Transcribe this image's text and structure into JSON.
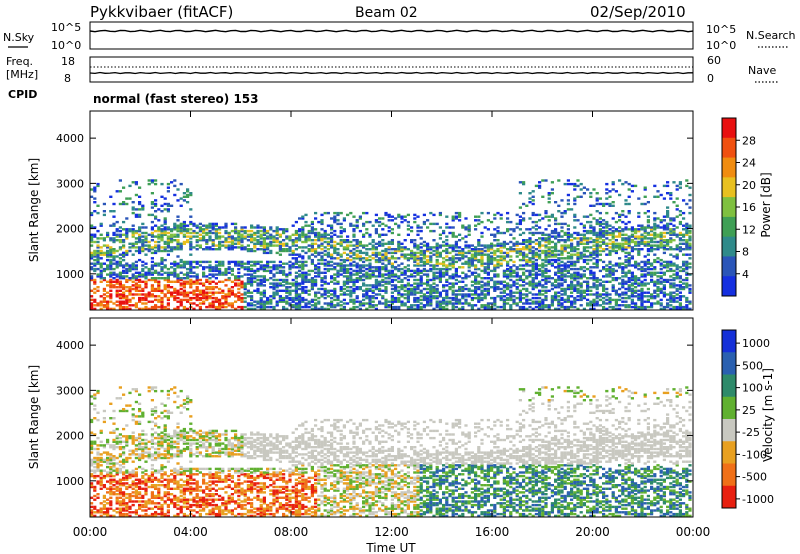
{
  "header": {
    "title": "Pykkvibaer (fitACF)",
    "beam": "Beam 02",
    "date": "02/Sep/2010"
  },
  "sky_panel": {
    "left_label": "N.Sky",
    "right_label": "N.Search",
    "left_ticks": [
      "10^5",
      "10^0"
    ],
    "right_ticks": [
      "10^5",
      "10^0"
    ]
  },
  "freq_panel": {
    "left_label_1": "Freq.",
    "left_label_2": "[MHz]",
    "right_label": "Nave",
    "left_ticks": [
      "18",
      "8"
    ],
    "right_ticks": [
      "60",
      "0"
    ]
  },
  "cpid": {
    "label": "CPID",
    "mode": "normal (fast stereo) 153"
  },
  "x_axis": {
    "label": "Time UT",
    "ticks": [
      "00:00",
      "04:00",
      "08:00",
      "12:00",
      "16:00",
      "20:00",
      "00:00"
    ]
  },
  "colors": {
    "power": [
      "#1530e0",
      "#2a55b8",
      "#2f8a8a",
      "#3f9f55",
      "#7fc040",
      "#e8c020",
      "#f08c10",
      "#f05010",
      "#e81010"
    ],
    "velocity": [
      "#1530d8",
      "#2a60b0",
      "#2e8a6a",
      "#60b030",
      "#c8c8c0",
      "#e8a020",
      "#f07018",
      "#e82010"
    ]
  },
  "chart_data": [
    {
      "type": "heatmap",
      "name": "Power",
      "ylabel": "Slant Range [km]",
      "xlabel": "",
      "yticks": [
        1000,
        2000,
        3000,
        4000
      ],
      "ylim": [
        200,
        4600
      ],
      "xlim_hours": [
        0,
        24
      ],
      "colorbar": {
        "label": "Power [dB]",
        "ticks": [
          "4",
          "8",
          "12",
          "16",
          "20",
          "24",
          "28"
        ],
        "range": [
          0,
          30
        ]
      }
    },
    {
      "type": "heatmap",
      "name": "Velocity",
      "ylabel": "Slant Range [km]",
      "xlabel": "Time UT",
      "yticks": [
        1000,
        2000,
        3000,
        4000
      ],
      "ylim": [
        200,
        4600
      ],
      "xlim_hours": [
        0,
        24
      ],
      "colorbar": {
        "label": "Velocity [m s-1]",
        "ticks": [
          "1000",
          "500",
          "100",
          "25",
          "-25",
          "-100",
          "-500",
          "-1000"
        ]
      }
    }
  ]
}
